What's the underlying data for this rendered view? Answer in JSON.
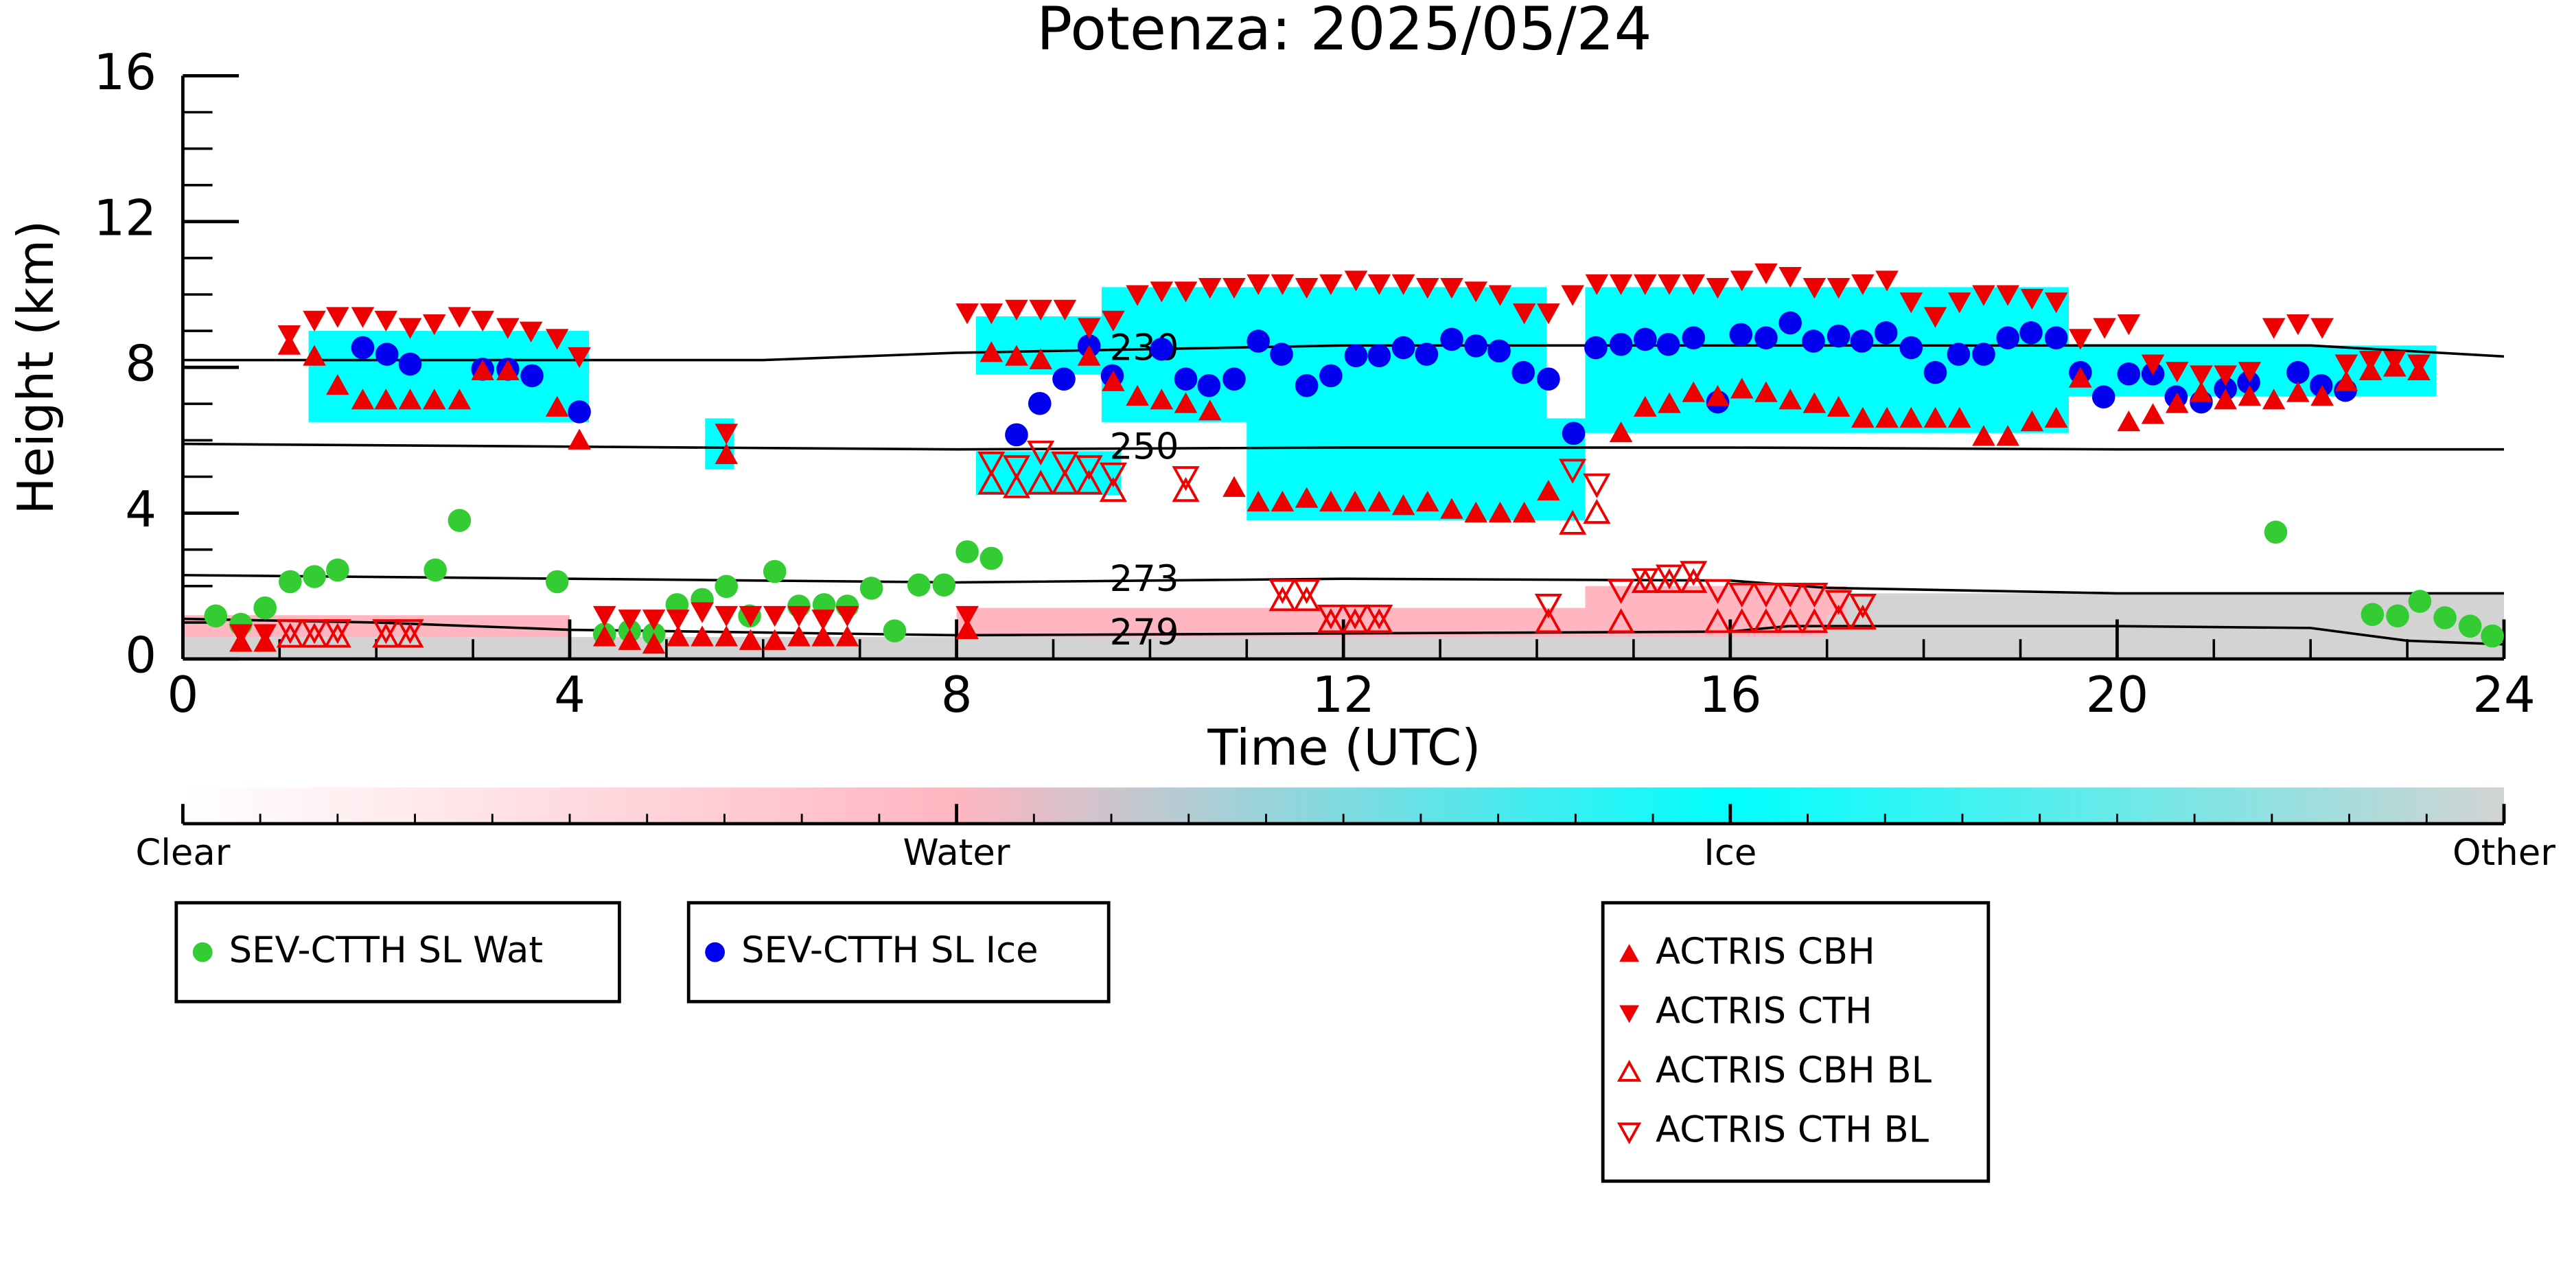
{
  "chart_data": {
    "type": "scatter",
    "title": "Potenza: 2025/05/24",
    "xlabel": "Time (UTC)",
    "ylabel": "Height (km)",
    "xlim": [
      0,
      24
    ],
    "xticks": [
      0,
      4,
      8,
      12,
      16,
      20,
      24
    ],
    "ylim": [
      0,
      16
    ],
    "yticks": [
      0,
      4,
      8,
      12,
      16
    ],
    "series": [
      {
        "name": "SEV-CTTH SL Wat",
        "color": "#33cc33",
        "marker": "circle",
        "filled": true,
        "x": [
          0.34,
          0.6,
          0.85,
          1.11,
          1.36,
          1.6,
          2.61,
          2.86,
          3.87,
          4.36,
          4.62,
          4.87,
          5.11,
          5.37,
          5.62,
          5.86,
          6.12,
          6.37,
          6.63,
          6.87,
          7.12,
          7.36,
          7.61,
          7.87,
          8.11,
          8.36,
          21.64,
          22.64,
          22.9,
          23.13,
          23.39,
          23.65,
          23.88
        ],
        "values": [
          1.18,
          0.95,
          1.4,
          2.12,
          2.26,
          2.44,
          2.44,
          3.8,
          2.12,
          0.68,
          0.77,
          0.68,
          1.49,
          1.63,
          1.99,
          1.18,
          2.4,
          1.45,
          1.49,
          1.45,
          1.94,
          0.77,
          2.03,
          2.03,
          2.94,
          2.76,
          3.48,
          1.22,
          1.18,
          1.58,
          1.13,
          0.9,
          0.63
        ]
      },
      {
        "name": "SEV-CTTH SL Ice",
        "color": "#0000ee",
        "marker": "circle",
        "filled": true,
        "x": [
          1.86,
          2.11,
          2.35,
          3.1,
          3.36,
          3.61,
          4.1,
          8.62,
          8.86,
          9.11,
          9.37,
          9.61,
          10.12,
          10.37,
          10.61,
          10.87,
          11.12,
          11.36,
          11.62,
          11.87,
          12.13,
          12.37,
          12.62,
          12.86,
          13.12,
          13.37,
          13.61,
          13.86,
          14.12,
          14.38,
          14.61,
          14.87,
          15.12,
          15.36,
          15.62,
          15.87,
          16.11,
          16.37,
          16.62,
          16.86,
          17.12,
          17.36,
          17.61,
          17.87,
          18.12,
          18.36,
          18.62,
          18.87,
          19.11,
          19.37,
          19.62,
          19.86,
          20.12,
          20.37,
          20.61,
          20.87,
          21.12,
          21.36,
          21.87,
          22.11,
          22.36
        ],
        "values": [
          8.54,
          8.36,
          8.09,
          7.95,
          7.95,
          7.77,
          6.78,
          6.15,
          7.01,
          7.68,
          8.59,
          7.77,
          8.5,
          7.68,
          7.5,
          7.68,
          8.72,
          8.36,
          7.5,
          7.77,
          8.32,
          8.32,
          8.54,
          8.36,
          8.77,
          8.59,
          8.45,
          7.86,
          7.68,
          6.19,
          8.54,
          8.63,
          8.77,
          8.63,
          8.81,
          7.05,
          8.9,
          8.81,
          9.22,
          8.72,
          8.86,
          8.72,
          8.95,
          8.54,
          7.86,
          8.36,
          8.36,
          8.81,
          8.95,
          8.81,
          7.86,
          7.19,
          7.82,
          7.82,
          7.19,
          7.05,
          7.41,
          7.59,
          7.86,
          7.5,
          7.37
        ]
      },
      {
        "name": "ACTRIS CBH",
        "color": "#ee0000",
        "marker": "triangle-up",
        "filled": true,
        "x": [
          0.6,
          0.85,
          1.1,
          1.36,
          1.6,
          1.86,
          2.1,
          2.35,
          2.6,
          2.86,
          3.1,
          3.36,
          3.87,
          4.1,
          4.36,
          4.62,
          4.87,
          5.12,
          5.37,
          5.62,
          5.62,
          5.87,
          6.12,
          6.37,
          6.62,
          6.87,
          8.11,
          8.36,
          8.62,
          8.87,
          9.37,
          9.62,
          9.87,
          10.12,
          10.37,
          10.62,
          10.87,
          11.12,
          11.37,
          11.62,
          11.87,
          12.12,
          12.37,
          12.62,
          12.87,
          13.12,
          13.37,
          13.62,
          13.87,
          14.12,
          14.87,
          15.12,
          15.37,
          15.62,
          15.87,
          16.12,
          16.37,
          16.62,
          16.87,
          17.12,
          17.37,
          17.62,
          17.87,
          18.12,
          18.37,
          18.62,
          18.87,
          19.12,
          19.37,
          19.62,
          20.12,
          20.37,
          20.62,
          20.87,
          21.12,
          21.37,
          21.62,
          21.87,
          22.12,
          22.37,
          22.62,
          22.87,
          23.12
        ],
        "values": [
          0.45,
          0.45,
          8.6,
          8.3,
          7.5,
          7.1,
          7.1,
          7.1,
          7.1,
          7.1,
          7.9,
          7.9,
          6.9,
          6.0,
          0.6,
          0.5,
          0.4,
          0.6,
          0.6,
          0.6,
          5.6,
          0.5,
          0.5,
          0.6,
          0.6,
          0.6,
          0.8,
          8.4,
          8.3,
          8.2,
          8.3,
          7.6,
          7.2,
          7.1,
          7.0,
          6.8,
          4.7,
          4.3,
          4.3,
          4.4,
          4.3,
          4.3,
          4.3,
          4.2,
          4.3,
          4.1,
          4.0,
          4.0,
          4.0,
          4.6,
          6.2,
          6.9,
          7.0,
          7.3,
          7.2,
          7.4,
          7.3,
          7.1,
          7.0,
          6.9,
          6.6,
          6.6,
          6.6,
          6.6,
          6.6,
          6.1,
          6.1,
          6.5,
          6.6,
          7.7,
          6.5,
          6.7,
          7.0,
          7.3,
          7.1,
          7.2,
          7.1,
          7.3,
          7.2,
          7.6,
          7.9,
          8.0,
          7.9
        ]
      },
      {
        "name": "ACTRIS CTH",
        "color": "#ee0000",
        "marker": "triangle-down",
        "filled": true,
        "x": [
          0.6,
          0.85,
          1.1,
          1.36,
          1.6,
          1.86,
          2.1,
          2.35,
          2.6,
          2.86,
          3.1,
          3.36,
          3.6,
          3.87,
          4.1,
          4.36,
          4.62,
          4.87,
          5.12,
          5.37,
          5.62,
          5.62,
          5.87,
          6.12,
          6.37,
          6.62,
          6.87,
          8.11,
          8.11,
          8.36,
          8.62,
          8.87,
          9.12,
          9.37,
          9.62,
          9.87,
          10.12,
          10.37,
          10.62,
          10.87,
          11.12,
          11.37,
          11.62,
          11.87,
          12.13,
          12.37,
          12.62,
          12.87,
          13.12,
          13.37,
          13.62,
          13.87,
          14.12,
          14.37,
          14.62,
          14.87,
          15.12,
          15.37,
          15.62,
          15.87,
          16.12,
          16.37,
          16.62,
          16.87,
          17.12,
          17.37,
          17.62,
          17.87,
          18.12,
          18.37,
          18.62,
          18.87,
          19.12,
          19.37,
          19.62,
          19.87,
          20.12,
          20.37,
          20.62,
          20.87,
          21.12,
          21.37,
          21.62,
          21.87,
          22.12,
          22.37,
          22.62,
          22.87,
          23.12
        ],
        "values": [
          0.7,
          0.7,
          8.9,
          9.3,
          9.4,
          9.4,
          9.3,
          9.1,
          9.2,
          9.4,
          9.3,
          9.1,
          9.0,
          8.8,
          8.3,
          1.2,
          1.1,
          1.1,
          1.1,
          1.3,
          1.2,
          6.2,
          1.2,
          1.2,
          1.2,
          1.1,
          1.2,
          1.2,
          9.5,
          9.5,
          9.6,
          9.6,
          9.6,
          9.1,
          9.3,
          10.0,
          10.1,
          10.1,
          10.2,
          10.2,
          10.3,
          10.3,
          10.2,
          10.3,
          10.4,
          10.3,
          10.3,
          10.2,
          10.2,
          10.1,
          10.0,
          9.5,
          9.5,
          10.0,
          10.3,
          10.3,
          10.3,
          10.3,
          10.3,
          10.2,
          10.4,
          10.6,
          10.5,
          10.2,
          10.2,
          10.3,
          10.4,
          9.8,
          9.4,
          9.8,
          10.0,
          10.0,
          9.9,
          9.8,
          8.8,
          9.1,
          9.2,
          8.1,
          7.9,
          7.8,
          7.8,
          7.9,
          9.1,
          9.2,
          9.1,
          8.1,
          8.2,
          8.2,
          8.1
        ]
      },
      {
        "name": "ACTRIS CBH BL",
        "color": "#ee0000",
        "marker": "triangle-up",
        "filled": false,
        "x": [
          1.11,
          1.36,
          1.6,
          2.1,
          2.35,
          8.36,
          8.62,
          8.87,
          9.12,
          9.37,
          9.62,
          10.37,
          11.37,
          11.62,
          11.87,
          12.12,
          12.37,
          14.12,
          14.37,
          14.62,
          14.87,
          15.12,
          15.37,
          15.62,
          15.87,
          16.12,
          16.37,
          16.62,
          16.87,
          17.12,
          17.37
        ],
        "values": [
          0.6,
          0.6,
          0.6,
          0.6,
          0.6,
          4.8,
          4.7,
          4.8,
          4.8,
          4.8,
          4.6,
          4.6,
          1.6,
          1.6,
          1.0,
          1.0,
          1.0,
          1.0,
          3.7,
          4.0,
          1.0,
          2.1,
          2.1,
          2.1,
          1.0,
          1.0,
          1.0,
          1.0,
          1.0,
          1.1,
          1.1
        ]
      },
      {
        "name": "ACTRIS CTH BL",
        "color": "#ee0000",
        "marker": "triangle-down",
        "filled": false,
        "x": [
          1.11,
          1.36,
          1.6,
          2.1,
          2.35,
          8.36,
          8.62,
          8.87,
          9.12,
          9.37,
          9.62,
          10.37,
          11.37,
          11.62,
          11.87,
          12.12,
          12.37,
          14.12,
          14.37,
          14.62,
          14.87,
          15.12,
          15.37,
          15.62,
          15.87,
          16.12,
          16.37,
          16.62,
          16.87,
          17.12,
          17.37
        ],
        "values": [
          0.8,
          0.8,
          0.8,
          0.8,
          0.8,
          5.4,
          5.3,
          5.7,
          5.4,
          5.3,
          5.1,
          5.0,
          1.9,
          1.9,
          1.2,
          1.2,
          1.2,
          1.5,
          5.2,
          4.8,
          1.9,
          2.2,
          2.3,
          2.4,
          1.9,
          1.8,
          1.8,
          1.8,
          1.8,
          1.6,
          1.5
        ]
      }
    ],
    "isotherms": [
      {
        "level": 230,
        "x": [
          0,
          4,
          6,
          8,
          10,
          12,
          16,
          20,
          22,
          24
        ],
        "values": [
          8.2,
          8.2,
          8.2,
          8.4,
          8.5,
          8.6,
          8.6,
          8.6,
          8.6,
          8.3
        ]
      },
      {
        "level": 250,
        "x": [
          0,
          8,
          12,
          16,
          20,
          24
        ],
        "values": [
          5.9,
          5.75,
          5.8,
          5.8,
          5.75,
          5.75
        ]
      },
      {
        "level": 273,
        "x": [
          0,
          4,
          8,
          12,
          16,
          17,
          20,
          24
        ],
        "values": [
          2.3,
          2.2,
          2.1,
          2.2,
          2.15,
          1.95,
          1.8,
          1.8
        ]
      },
      {
        "level": 279,
        "x": [
          0,
          2,
          4,
          8,
          12,
          16,
          16.6,
          20,
          22,
          23,
          24
        ],
        "values": [
          1.1,
          1.0,
          0.8,
          0.65,
          0.7,
          0.75,
          0.9,
          0.9,
          0.85,
          0.5,
          0.4
        ]
      }
    ],
    "cloud_mask": [
      {
        "x": [
          0,
          24
        ],
        "y": [
          0,
          0.6
        ],
        "value": 3
      },
      {
        "x": [
          0,
          4
        ],
        "y": [
          0.6,
          1.2
        ],
        "value": 1
      },
      {
        "x": [
          8,
          17
        ],
        "y": [
          0.6,
          1.4
        ],
        "value": 1
      },
      {
        "x": [
          17,
          24
        ],
        "y": [
          0.6,
          1.8
        ],
        "value": 3
      },
      {
        "x": [
          14.5,
          17.2
        ],
        "y": [
          1.2,
          2.0
        ],
        "value": 1
      },
      {
        "x": [
          1.3,
          4.2
        ],
        "y": [
          6.5,
          9.0
        ],
        "value": 2
      },
      {
        "x": [
          8.2,
          9.5
        ],
        "y": [
          7.8,
          9.4
        ],
        "value": 2
      },
      {
        "x": [
          9.5,
          14.1
        ],
        "y": [
          6.5,
          10.2
        ],
        "value": 2
      },
      {
        "x": [
          11,
          14.5
        ],
        "y": [
          3.8,
          6.6
        ],
        "value": 2
      },
      {
        "x": [
          8.2,
          9.7
        ],
        "y": [
          4.5,
          5.7
        ],
        "value": 2
      },
      {
        "x": [
          14.5,
          19.5
        ],
        "y": [
          6.2,
          10.2
        ],
        "value": 2
      },
      {
        "x": [
          19.5,
          23.3
        ],
        "y": [
          7.2,
          8.6
        ],
        "value": 2
      },
      {
        "x": [
          5.4,
          5.7
        ],
        "y": [
          5.2,
          6.6
        ],
        "value": 2
      }
    ],
    "colorbar": {
      "xlim": [
        0,
        3
      ],
      "ticks": [
        {
          "value": 0,
          "label": "Clear"
        },
        {
          "value": 1,
          "label": "Water"
        },
        {
          "value": 2,
          "label": "Ice"
        },
        {
          "value": 3,
          "label": "Other"
        }
      ],
      "colors": [
        "#ffffff",
        "#ffb6c1",
        "#00ffff",
        "#d3d3d3"
      ]
    }
  }
}
